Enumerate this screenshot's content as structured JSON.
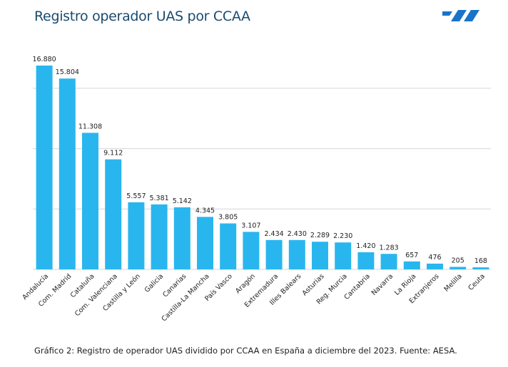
{
  "header": {
    "title": "Registro operador UAS por CCAA"
  },
  "logo": {
    "icon": "brand-stripes-icon",
    "color": "#1a73c8"
  },
  "caption": "Gráfico 2: Registro de operador UAS dividido por CCAA en España a diciembre del 2023. Fuente: AESA.",
  "colors": {
    "bar": "#29b6ef",
    "grid": "#d6d6d6",
    "text": "#222222"
  },
  "chart_data": {
    "type": "bar",
    "title": "Registro operador UAS por CCAA",
    "xlabel": "",
    "ylabel": "",
    "ylim": [
      0,
      17000
    ],
    "grid": true,
    "gridlines": [
      5000,
      10000,
      15000
    ],
    "categories": [
      "Andalucía",
      "Com. Madrid",
      "Cataluña",
      "Com. Valenciana",
      "Castilla y León",
      "Galicia",
      "Canarias",
      "Castilla-La Mancha",
      "País Vasco",
      "Aragón",
      "Extremadura",
      "Illes Balears",
      "Asturias",
      "Reg. Murcia",
      "Cantabria",
      "Navarra",
      "La Rioja",
      "Extranjeros",
      "Melilla",
      "Ceuta"
    ],
    "values": [
      16880,
      15804,
      11308,
      9112,
      5557,
      5381,
      5142,
      4345,
      3805,
      3107,
      2434,
      2430,
      2289,
      2230,
      1420,
      1283,
      657,
      476,
      205,
      168
    ],
    "value_labels": [
      "16.880",
      "15.804",
      "11.308",
      "9.112",
      "5.557",
      "5.381",
      "5.142",
      "4.345",
      "3.805",
      "3.107",
      "2.434",
      "2.430",
      "2.289",
      "2.230",
      "1.420",
      "1.283",
      "657",
      "476",
      "205",
      "168"
    ]
  }
}
